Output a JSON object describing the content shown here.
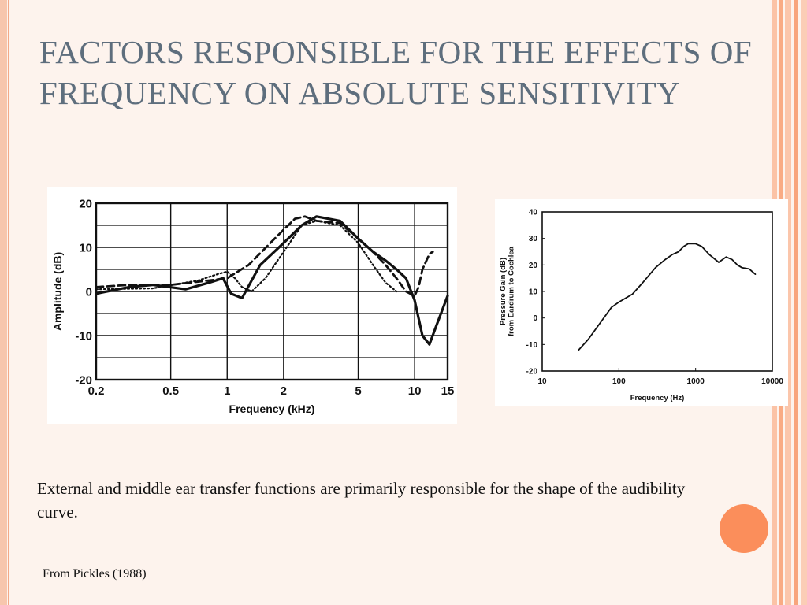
{
  "slide": {
    "title": "FACTORS RESPONSIBLE FOR THE EFFECTS OF FREQUENCY ON ABSOLUTE SENSITIVITY",
    "caption": "External and middle ear transfer functions are primarily responsible for the shape of the audibility curve.",
    "source": "From Pickles (1988)",
    "accent_color": "#fb8e5b",
    "title_color": "#5e6e7d"
  },
  "chart_data": [
    {
      "type": "line",
      "title": "",
      "xlabel": "Frequency (kHz)",
      "ylabel": "Amplitude (dB)",
      "x_scale": "log",
      "xlim": [
        0.2,
        15
      ],
      "ylim": [
        -20,
        20
      ],
      "x_ticks": [
        0.2,
        0.5,
        1,
        2,
        5,
        10,
        15
      ],
      "x_tick_labels": [
        "0.2",
        "0.5",
        "1",
        "2",
        "5",
        "10",
        "15"
      ],
      "y_ticks": [
        20,
        10,
        0,
        -10,
        -20
      ],
      "y_tick_labels": [
        "20",
        "10",
        "0",
        "-10",
        "-20"
      ],
      "grid": true,
      "series": [
        {
          "style": "solid",
          "x": [
            0.2,
            0.3,
            0.4,
            0.6,
            0.8,
            0.95,
            1.05,
            1.2,
            1.5,
            2,
            2.5,
            3,
            4,
            5,
            6,
            7,
            8,
            9,
            10,
            11,
            12,
            13,
            15
          ],
          "y": [
            -0.5,
            1,
            1.5,
            0.5,
            2,
            3,
            -0.5,
            -1.5,
            6,
            11,
            15,
            17,
            16,
            12,
            9,
            7,
            5,
            3,
            -2,
            -10,
            -12,
            -8,
            -1
          ]
        },
        {
          "style": "dashed",
          "x": [
            0.2,
            0.3,
            0.5,
            0.8,
            1,
            1.3,
            1.7,
            2,
            2.3,
            2.6,
            3,
            4,
            5,
            6,
            7,
            8,
            9,
            10,
            10.5,
            11,
            12,
            12.5
          ],
          "y": [
            1,
            1.5,
            1.5,
            2.5,
            3,
            6,
            11,
            14,
            16.5,
            17,
            16,
            15.5,
            12,
            9,
            6,
            3,
            0,
            -1,
            1,
            5,
            8.5,
            9
          ]
        },
        {
          "style": "dotted",
          "x": [
            0.2,
            0.4,
            0.7,
            0.9,
            1,
            1.1,
            1.2,
            1.35,
            1.6,
            2,
            2.5,
            3,
            4,
            5,
            6,
            7,
            8
          ],
          "y": [
            0.5,
            0.7,
            2.5,
            4,
            4.5,
            3,
            1,
            0,
            3,
            9,
            15,
            16,
            15,
            11,
            6,
            2,
            0
          ]
        }
      ]
    },
    {
      "type": "line",
      "title": "",
      "xlabel": "Frequency (Hz)",
      "ylabel": [
        "Pressure Gain (dB)",
        "from Eardrum to Cochlea"
      ],
      "x_scale": "log",
      "xlim": [
        10,
        10000
      ],
      "ylim": [
        -20,
        40
      ],
      "x_ticks": [
        10,
        100,
        1000,
        10000
      ],
      "x_tick_labels": [
        "10",
        "100",
        "1000",
        "10000"
      ],
      "y_ticks": [
        40,
        30,
        20,
        10,
        0,
        -10,
        -20
      ],
      "y_tick_labels": [
        "40",
        "30",
        "20",
        "10",
        "0",
        "-10",
        "-20"
      ],
      "grid": false,
      "series": [
        {
          "style": "solid",
          "x": [
            30,
            40,
            60,
            80,
            100,
            150,
            200,
            300,
            400,
            500,
            600,
            700,
            800,
            1000,
            1200,
            1500,
            2000,
            2500,
            3000,
            3500,
            4000,
            5000,
            6000
          ],
          "y": [
            -12,
            -8,
            -1,
            4,
            6,
            9,
            13,
            19,
            22,
            24,
            25,
            27,
            28,
            28,
            27,
            24,
            21,
            23,
            22,
            20,
            19,
            18.5,
            16.5
          ]
        }
      ]
    }
  ]
}
